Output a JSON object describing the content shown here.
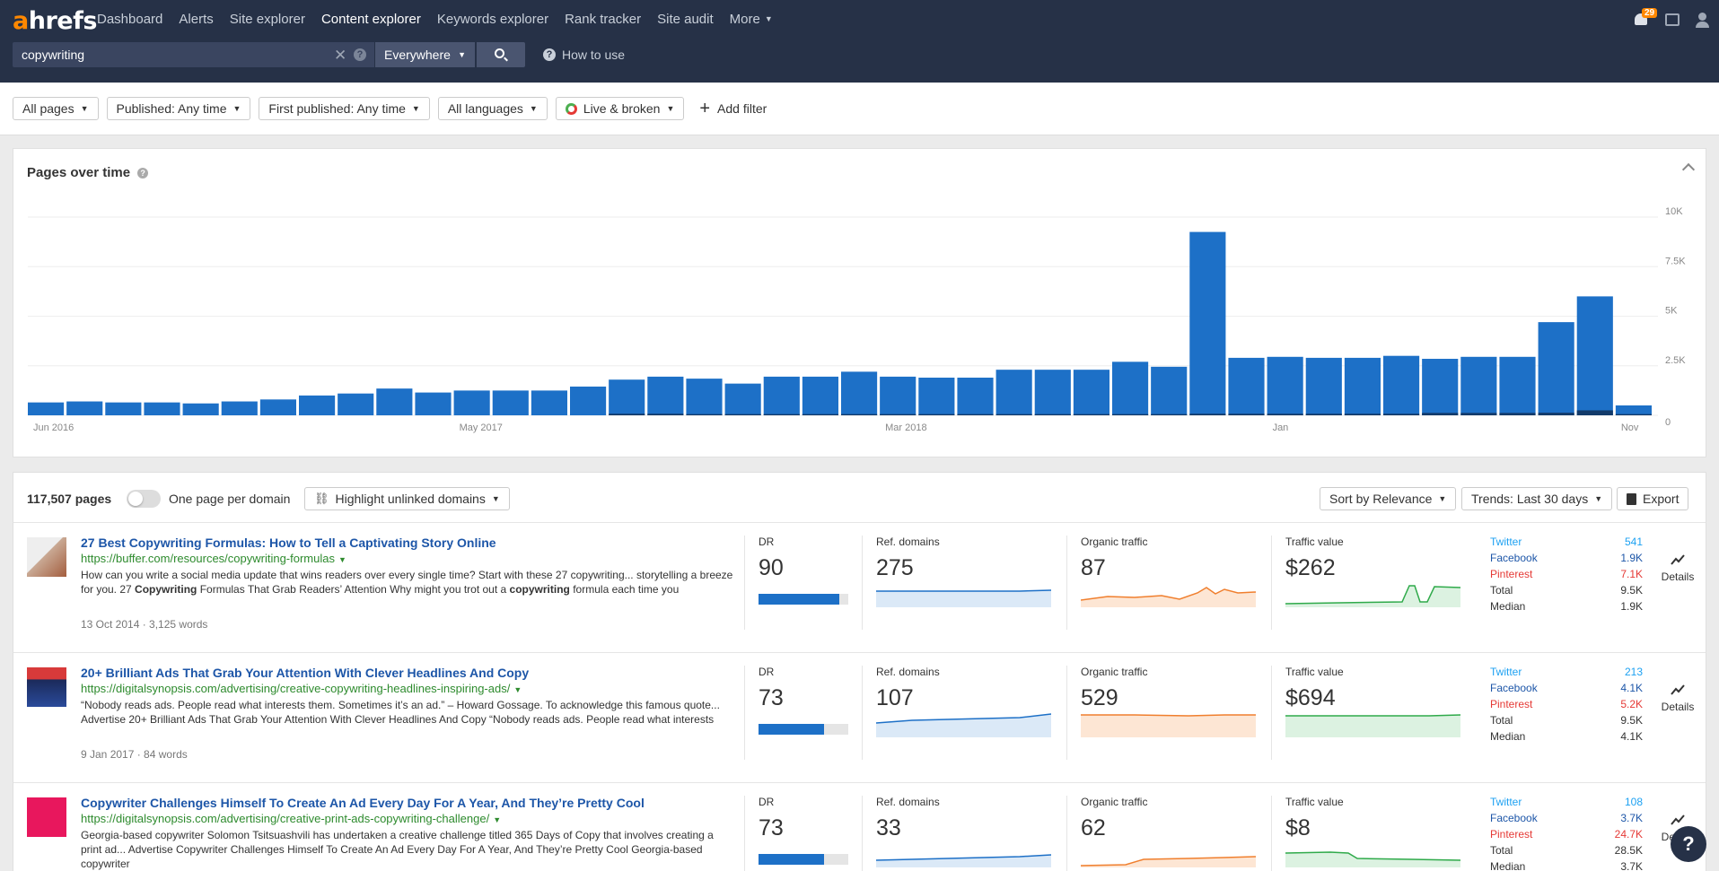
{
  "header": {
    "logo_a": "a",
    "logo_rest": "hrefs",
    "nav": [
      {
        "label": "Dashboard",
        "active": false
      },
      {
        "label": "Alerts",
        "active": false
      },
      {
        "label": "Site explorer",
        "active": false
      },
      {
        "label": "Content explorer",
        "active": true
      },
      {
        "label": "Keywords explorer",
        "active": false
      },
      {
        "label": "Rank tracker",
        "active": false
      },
      {
        "label": "Site audit",
        "active": false
      },
      {
        "label": "More",
        "active": false
      }
    ],
    "notification_count": "29",
    "icons": [
      "bell-icon",
      "tablet-icon",
      "user-icon"
    ]
  },
  "search": {
    "query": "copywriting",
    "scope": "Everywhere",
    "how_to_use": "How to use"
  },
  "filters": {
    "items": [
      "All pages",
      "Published: Any time",
      "First published: Any time",
      "All languages",
      "Live & broken"
    ],
    "add_filter": "Add filter"
  },
  "chart_panel": {
    "title": "Pages over time",
    "chart_data": {
      "type": "bar",
      "title": "Pages over time",
      "x_tick_labels": [
        "Jun 2016",
        "May 2017",
        "Mar 2018",
        "Jan",
        "Nov"
      ],
      "y_tick_labels": [
        "10K",
        "7.5K",
        "5K",
        "2.5K",
        "0"
      ],
      "ylim": [
        0,
        10000
      ],
      "grid": true,
      "series": [
        {
          "values": [
            650,
            700,
            650,
            650,
            600,
            700,
            800,
            1000,
            1100,
            1350,
            1150,
            1250,
            1250,
            1250,
            1450,
            1800,
            1950,
            1850,
            1600,
            1950,
            1950,
            2200,
            1950,
            1900,
            1900,
            2300,
            2300,
            2300,
            2700,
            2450,
            9250,
            2900,
            2950,
            2900,
            2900,
            3000,
            2850,
            2950,
            2950,
            4700,
            6000,
            500
          ],
          "dark_values": [
            0,
            0,
            0,
            0,
            0,
            0,
            0,
            0,
            0,
            0,
            0,
            0,
            0,
            0,
            0,
            80,
            80,
            60,
            60,
            60,
            60,
            60,
            60,
            60,
            60,
            60,
            60,
            60,
            60,
            60,
            80,
            80,
            80,
            80,
            80,
            80,
            120,
            120,
            120,
            130,
            250,
            60
          ]
        }
      ]
    }
  },
  "results": {
    "count": "117,507 pages",
    "one_per_domain": "One page per domain",
    "highlight": "Highlight unlinked domains",
    "sort": "Sort by Relevance",
    "trends": "Trends: Last 30 days",
    "export": "Export",
    "labels": {
      "dr": "DR",
      "ref": "Ref. domains",
      "organic": "Organic traffic",
      "value": "Traffic value",
      "details": "Details",
      "twitter": "Twitter",
      "facebook": "Facebook",
      "pinterest": "Pinterest",
      "total": "Total",
      "median": "Median"
    },
    "rows": [
      {
        "title": "27 Best Copywriting Formulas: How to Tell a Captivating Story Online",
        "url": "https://buffer.com/resources/copywriting-formulas",
        "desc_1": "How can you write a social media update that wins readers over every single time? Start with these 27 copywriting... storytelling a breeze for you. 27 ",
        "desc_b1": "Copywriting",
        "desc_2": " Formulas That Grab Readers’ Attention Why might you trot out a ",
        "desc_b2": "copywriting",
        "desc_3": " formula each time you",
        "meta": "13 Oct 2014  ·  3,125 words",
        "dr": "90",
        "dr_level": 0.9,
        "ref_domains": "275",
        "organic": "87",
        "traffic_value": "$262",
        "twitter": "541",
        "facebook": "1.9K",
        "pinterest": "7.1K",
        "total": "9.5K",
        "median": "1.9K",
        "thumb_color": "#c9a994"
      },
      {
        "title": "20+ Brilliant Ads That Grab Your Attention With Clever Headlines And Copy",
        "url": "https://digitalsynopsis.com/advertising/creative-copywriting-headlines-inspiring-ads/",
        "desc_1": "“Nobody reads ads. People read what interests them. Sometimes it’s an ad.” – Howard Gossage. To acknowledge this famous quote... Advertise 20+ Brilliant Ads That Grab Your Attention With Clever Headlines And Copy “Nobody reads ads. People read what interests",
        "desc_b1": "",
        "desc_2": "",
        "desc_b2": "",
        "desc_3": "",
        "meta": "9 Jan 2017  ·  84 words",
        "dr": "73",
        "dr_level": 0.73,
        "ref_domains": "107",
        "organic": "529",
        "traffic_value": "$694",
        "twitter": "213",
        "facebook": "4.1K",
        "pinterest": "5.2K",
        "total": "9.5K",
        "median": "4.1K",
        "thumb_color": "#d83a3a"
      },
      {
        "title": "Copywriter Challenges Himself To Create An Ad Every Day For A Year, And They’re Pretty Cool",
        "url": "https://digitalsynopsis.com/advertising/creative-print-ads-copywriting-challenge/",
        "desc_1": "Georgia-based copywriter Solomon Tsitsuashvili has undertaken a creative challenge titled 365 Days of Copy that involves creating a print ad... Advertise Copywriter Challenges Himself To Create An Ad Every Day For A Year, And They’re Pretty Cool Georgia-based copywriter",
        "desc_b1": "",
        "desc_2": "",
        "desc_b2": "",
        "desc_3": "",
        "meta": "",
        "dr": "73",
        "dr_level": 0.73,
        "ref_domains": "33",
        "organic": "62",
        "traffic_value": "$8",
        "twitter": "108",
        "facebook": "3.7K",
        "pinterest": "24.7K",
        "total": "28.5K",
        "median": "3.7K",
        "thumb_color": "#e8175d"
      }
    ]
  },
  "help": "?",
  "colors": {
    "bar": "#1d70c7",
    "bar_dark": "#123a6a",
    "link": "#1d56a8",
    "url": "#2e8b2e",
    "twitter": "#1da1f2",
    "facebook": "#1d56a8",
    "pinterest": "#e53935",
    "organic": "#f07f2e",
    "traffic_value": "#2faa4a"
  }
}
